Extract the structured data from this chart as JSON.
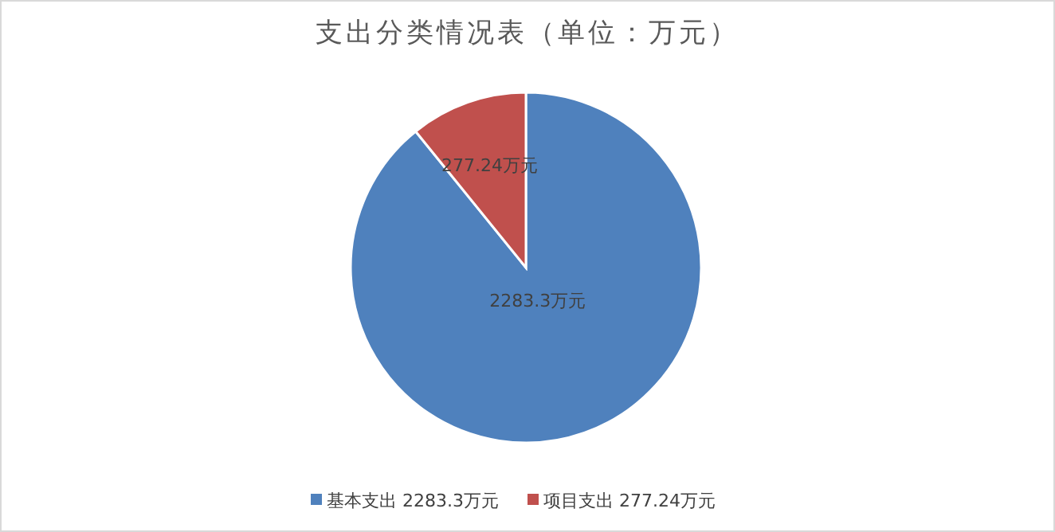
{
  "chart_data": {
    "type": "pie",
    "title": "支出分类情况表（单位：万元）",
    "categories": [
      "基本支出",
      "项目支出"
    ],
    "values": [
      2283.3,
      277.24
    ],
    "colors": [
      "#4f81bd",
      "#c0504d"
    ],
    "value_labels": [
      "2283.3万元",
      "277.24万元"
    ],
    "legend": "bottom"
  }
}
